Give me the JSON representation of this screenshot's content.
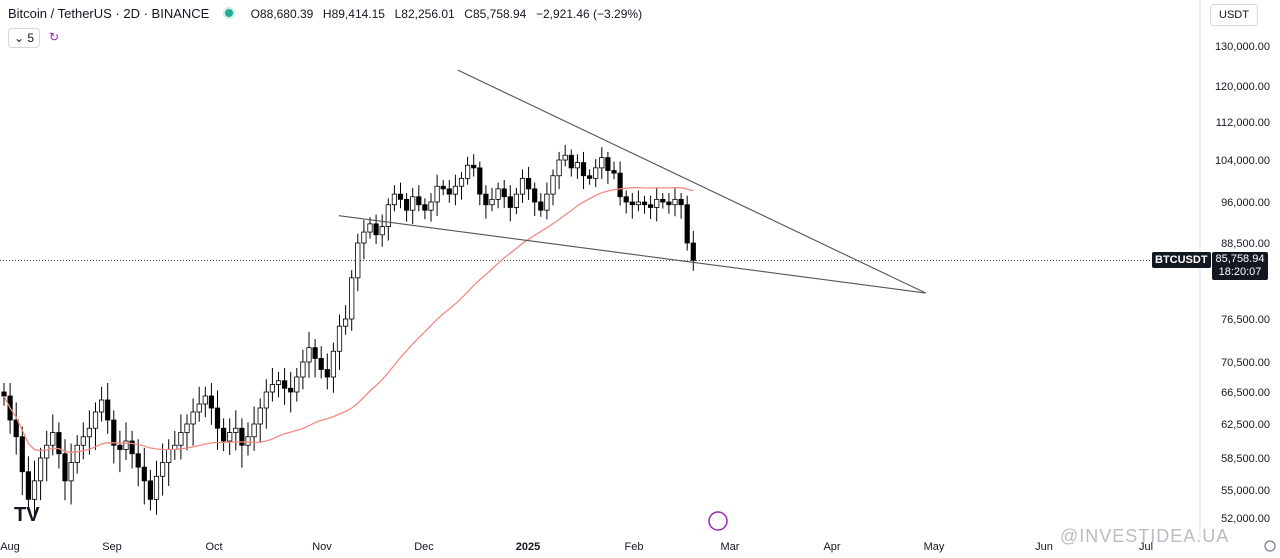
{
  "header": {
    "title": "Bitcoin / TetherUS · 2D · BINANCE",
    "open": "O88,680.39",
    "high": "H89,414.15",
    "low": "L82,256.01",
    "close": "C85,758.94",
    "change": "−2,921.46 (−3.29%)",
    "indicator_count": "5",
    "currency": "USDT"
  },
  "price_label": {
    "symbol": "BTCUSDT",
    "price": "85,758.94",
    "countdown": "18:20:07"
  },
  "watermark": "@INVESTIDEA.UA",
  "chart_data": {
    "type": "candlestick",
    "yaxis_ticks": [
      "130,000.00",
      "120,000.00",
      "112,000.00",
      "104,000.00",
      "96,000.00",
      "88,500.00",
      "76,500.00",
      "70,500.00",
      "66,500.00",
      "62,500.00",
      "58,500.00",
      "55,000.00",
      "52,000.00"
    ],
    "y_tick_values": [
      130000,
      120000,
      112000,
      104000,
      96000,
      88500,
      76500,
      70500,
      66500,
      62500,
      58500,
      55000,
      52000
    ],
    "xaxis_ticks": [
      "Aug",
      "Sep",
      "Oct",
      "Nov",
      "Dec",
      "2025",
      "Feb",
      "Mar",
      "Apr",
      "May",
      "Jun",
      "Jul"
    ],
    "last_price": 85758.94,
    "candle_closes_approx": [
      66000,
      63000,
      61000,
      57000,
      54000,
      56000,
      58500,
      60000,
      61500,
      59000,
      56000,
      58000,
      60000,
      61000,
      62000,
      64000,
      65500,
      63000,
      60000,
      59500,
      60500,
      59000,
      57500,
      56000,
      54000,
      56500,
      58000,
      59500,
      60000,
      61500,
      62500,
      64000,
      65000,
      66000,
      64500,
      62000,
      60500,
      61500,
      62000,
      60000,
      61000,
      62500,
      64500,
      66500,
      67500,
      68000,
      67000,
      66500,
      68500,
      70500,
      72500,
      71000,
      69500,
      68500,
      72000,
      75500,
      76500,
      83000,
      88500,
      90500,
      92000,
      90000,
      91500,
      95500,
      97500,
      96500,
      94500,
      97000,
      95500,
      94500,
      96000,
      99000,
      98500,
      97500,
      99000,
      100500,
      103000,
      102500,
      97500,
      95500,
      96500,
      98500,
      97000,
      95000,
      97500,
      100500,
      98500,
      96000,
      94500,
      97500,
      101000,
      104000,
      105000,
      102500,
      103500,
      101000,
      100500,
      102500,
      104500,
      102000,
      101500,
      97000,
      96000,
      95500,
      96000,
      95500,
      95000,
      96500,
      96000,
      95500,
      96500,
      95500,
      88500,
      85759
    ],
    "trendlines": [
      {
        "from": {
          "date": "2024-12-11",
          "price": 124000
        },
        "to": {
          "date": "2025-04-28",
          "price": 80600
        }
      },
      {
        "from": {
          "date": "2024-11-06",
          "price": 93500
        },
        "to": {
          "date": "2025-04-28",
          "price": 80600
        }
      }
    ],
    "moving_average_color": "#f28b82",
    "up_color": "#ffffff",
    "down_color": "#000000"
  }
}
